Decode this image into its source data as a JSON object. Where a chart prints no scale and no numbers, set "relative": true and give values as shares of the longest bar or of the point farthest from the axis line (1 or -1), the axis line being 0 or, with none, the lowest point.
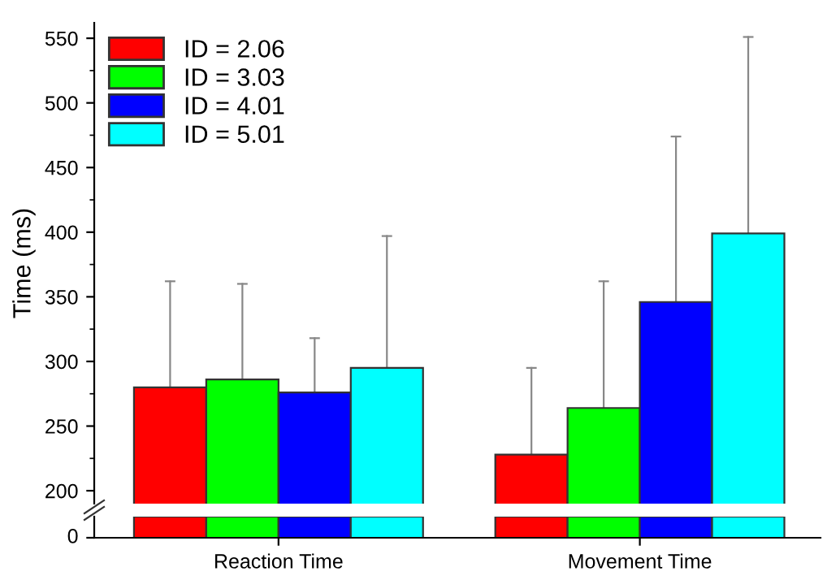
{
  "chart_data": [
    {
      "type": "bar",
      "ylabel": "Time (ms)",
      "categories": [
        null,
        null
      ],
      "ylim": [
        190,
        562
      ],
      "yticks": [
        200,
        250,
        300,
        350,
        400,
        450,
        500,
        550
      ],
      "tick_labels": "y",
      "legend": "top left",
      "grid": false,
      "series": [
        {
          "name": "ID = 2.06",
          "color": "#ff0000",
          "values": [
            280,
            228
          ],
          "errors": [
            [
              280,
              362
            ],
            [
              228,
              295
            ]
          ]
        },
        {
          "name": "ID = 3.03",
          "color": "#00ff00",
          "values": [
            286,
            264
          ],
          "errors": [
            [
              286,
              360
            ],
            [
              264,
              362
            ]
          ]
        },
        {
          "name": "ID = 4.01",
          "color": "#0000ff",
          "values": [
            276,
            346
          ],
          "errors": [
            [
              276,
              318
            ],
            [
              346,
              474
            ]
          ]
        },
        {
          "name": "ID = 5.01",
          "color": "#00ffff",
          "values": [
            295,
            399
          ],
          "errors": [
            [
              295,
              397
            ],
            [
              399,
              551
            ]
          ]
        }
      ]
    },
    {
      "type": "bar",
      "categories": [
        "Reaction Time",
        "Movement Time"
      ],
      "relative": true,
      "annotations": [
        "0"
      ],
      "legend": false,
      "grid": false,
      "series": [
        {
          "color": "#ff0000",
          "values": [
            1,
            1
          ]
        },
        {
          "color": "#00ff00",
          "values": [
            1,
            1
          ]
        },
        {
          "color": "#0000ff",
          "values": [
            1,
            1
          ]
        },
        {
          "color": "#00ffff",
          "values": [
            1,
            1
          ]
        }
      ]
    }
  ]
}
